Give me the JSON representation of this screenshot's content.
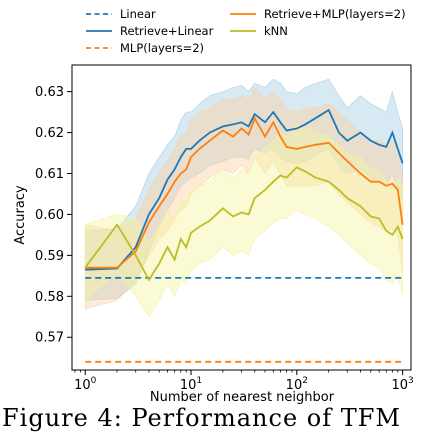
{
  "caption": "Figure 4: Performance of TFM",
  "chart_data": {
    "type": "line",
    "xlabel": "Number of nearest neighbor",
    "ylabel": "Accuracy",
    "x_scale": "log",
    "xlim": [
      0.75,
      1200
    ],
    "ylim": [
      0.562,
      0.6365
    ],
    "x_ticks": [
      1,
      10,
      100,
      1000
    ],
    "x_tick_labels": [
      "10^0",
      "10^1",
      "10^2",
      "10^3"
    ],
    "y_ticks": [
      0.57,
      0.58,
      0.59,
      0.6,
      0.61,
      0.62,
      0.63
    ],
    "y_tick_labels": [
      "0.57",
      "0.58",
      "0.59",
      "0.60",
      "0.61",
      "0.62",
      "0.63"
    ],
    "grid": false,
    "legend_position": "top (above plot), 2 columns",
    "series": [
      {
        "name": "Linear",
        "color": "#1f77b4",
        "style": "dashed",
        "x": [
          1,
          1000
        ],
        "y": [
          0.5845,
          0.5845
        ]
      },
      {
        "name": "Retrieve+Linear",
        "color": "#1f77b4",
        "style": "solid",
        "band_color": "#a6cee3",
        "x": [
          1,
          2,
          3,
          4,
          5,
          6,
          7,
          8,
          9,
          10,
          12,
          15,
          20,
          25,
          30,
          35,
          40,
          50,
          60,
          70,
          80,
          100,
          120,
          150,
          200,
          250,
          300,
          400,
          500,
          600,
          700,
          800,
          900,
          1000
        ],
        "y": [
          0.5865,
          0.5868,
          0.592,
          0.6,
          0.604,
          0.6085,
          0.611,
          0.614,
          0.616,
          0.616,
          0.618,
          0.62,
          0.6215,
          0.622,
          0.6225,
          0.6215,
          0.6245,
          0.6225,
          0.625,
          0.6225,
          0.6205,
          0.621,
          0.622,
          0.6235,
          0.6255,
          0.62,
          0.618,
          0.62,
          0.618,
          0.617,
          0.6165,
          0.62,
          0.616,
          0.6125
        ],
        "band_low": [
          0.579,
          0.5795,
          0.583,
          0.591,
          0.597,
          0.601,
          0.604,
          0.607,
          0.608,
          0.609,
          0.61,
          0.612,
          0.613,
          0.614,
          0.614,
          0.6135,
          0.616,
          0.615,
          0.616,
          0.614,
          0.613,
          0.6125,
          0.613,
          0.6145,
          0.616,
          0.612,
          0.61,
          0.611,
          0.609,
          0.608,
          0.607,
          0.61,
          0.606,
          0.603
        ],
        "band_high": [
          0.596,
          0.5965,
          0.602,
          0.61,
          0.614,
          0.617,
          0.619,
          0.623,
          0.625,
          0.625,
          0.627,
          0.629,
          0.63,
          0.631,
          0.6315,
          0.63,
          0.632,
          0.631,
          0.633,
          0.632,
          0.63,
          0.6295,
          0.631,
          0.632,
          0.633,
          0.629,
          0.626,
          0.629,
          0.627,
          0.626,
          0.625,
          0.63,
          0.625,
          0.621
        ]
      },
      {
        "name": "MLP(layers=2)",
        "color": "#ff7f0e",
        "style": "dashed",
        "x": [
          1,
          1000
        ],
        "y": [
          0.564,
          0.564
        ]
      },
      {
        "name": "Retrieve+MLP(layers=2)",
        "color": "#ff7f0e",
        "style": "solid",
        "band_color": "#fdd0a2",
        "x": [
          1,
          2,
          3,
          4,
          5,
          6,
          7,
          8,
          9,
          10,
          12,
          15,
          20,
          25,
          30,
          35,
          40,
          50,
          60,
          70,
          80,
          100,
          120,
          150,
          200,
          250,
          300,
          400,
          500,
          600,
          700,
          800,
          900,
          1000
        ],
        "y": [
          0.587,
          0.587,
          0.591,
          0.598,
          0.602,
          0.605,
          0.608,
          0.61,
          0.611,
          0.614,
          0.616,
          0.618,
          0.6205,
          0.619,
          0.621,
          0.6195,
          0.6235,
          0.619,
          0.6225,
          0.619,
          0.6165,
          0.616,
          0.6165,
          0.617,
          0.6175,
          0.615,
          0.613,
          0.61,
          0.608,
          0.608,
          0.607,
          0.6075,
          0.606,
          0.5975
        ],
        "band_low": [
          0.577,
          0.579,
          0.584,
          0.59,
          0.594,
          0.596,
          0.599,
          0.601,
          0.602,
          0.605,
          0.607,
          0.609,
          0.611,
          0.61,
          0.612,
          0.61,
          0.614,
          0.61,
          0.613,
          0.61,
          0.607,
          0.607,
          0.607,
          0.607,
          0.608,
          0.605,
          0.603,
          0.6,
          0.598,
          0.597,
          0.596,
          0.5965,
          0.595,
          0.586
        ],
        "band_high": [
          0.5975,
          0.596,
          0.599,
          0.606,
          0.61,
          0.613,
          0.616,
          0.619,
          0.62,
          0.623,
          0.625,
          0.626,
          0.628,
          0.628,
          0.629,
          0.628,
          0.631,
          0.628,
          0.63,
          0.628,
          0.626,
          0.625,
          0.626,
          0.626,
          0.627,
          0.625,
          0.623,
          0.62,
          0.618,
          0.618,
          0.617,
          0.618,
          0.616,
          0.608
        ]
      },
      {
        "name": "kNN",
        "color": "#bcbd22",
        "style": "solid",
        "band_color": "#f3f3a0",
        "x": [
          1,
          2,
          3,
          4,
          5,
          6,
          7,
          8,
          9,
          10,
          12,
          15,
          20,
          25,
          30,
          35,
          40,
          50,
          60,
          70,
          80,
          100,
          120,
          150,
          200,
          250,
          300,
          400,
          500,
          600,
          700,
          800,
          900,
          1000
        ],
        "y": [
          0.587,
          0.5975,
          0.59,
          0.584,
          0.588,
          0.592,
          0.589,
          0.594,
          0.592,
          0.5955,
          0.597,
          0.5985,
          0.6015,
          0.5995,
          0.6005,
          0.6,
          0.604,
          0.606,
          0.608,
          0.6095,
          0.609,
          0.6115,
          0.6105,
          0.609,
          0.608,
          0.606,
          0.604,
          0.602,
          0.5995,
          0.599,
          0.596,
          0.595,
          0.597,
          0.594
        ],
        "band_low": [
          0.579,
          0.586,
          0.58,
          0.575,
          0.579,
          0.583,
          0.58,
          0.584,
          0.583,
          0.586,
          0.588,
          0.589,
          0.592,
          0.59,
          0.591,
          0.59,
          0.594,
          0.596,
          0.598,
          0.599,
          0.599,
          0.601,
          0.6,
          0.599,
          0.597,
          0.595,
          0.593,
          0.59,
          0.588,
          0.587,
          0.584,
          0.583,
          0.585,
          0.5805
        ],
        "band_high": [
          0.5975,
          0.6,
          0.599,
          0.593,
          0.597,
          0.601,
          0.598,
          0.604,
          0.602,
          0.606,
          0.607,
          0.608,
          0.611,
          0.609,
          0.611,
          0.61,
          0.614,
          0.616,
          0.618,
          0.62,
          0.619,
          0.622,
          0.621,
          0.62,
          0.619,
          0.617,
          0.615,
          0.614,
          0.611,
          0.611,
          0.608,
          0.607,
          0.609,
          0.607
        ]
      }
    ]
  }
}
